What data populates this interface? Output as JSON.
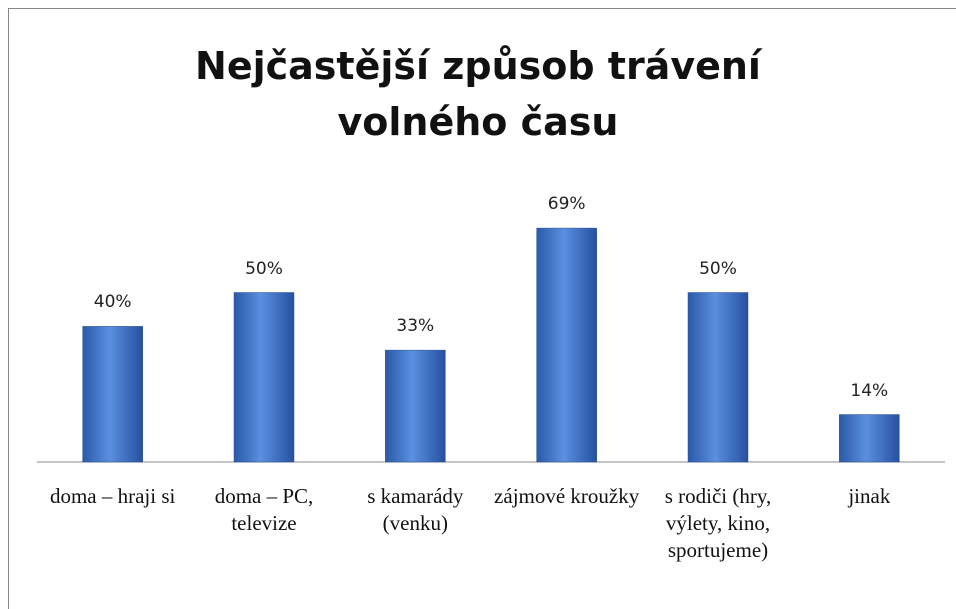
{
  "chart_data": {
    "type": "bar",
    "title": "Nejčastější způsob trávení volného času",
    "categories": [
      "doma – hraji si",
      "doma – PC, televize",
      "s kamarády (venku)",
      "zájmové kroužky",
      "s rodiči (hry, výlety, kino, sportujeme)",
      "jinak"
    ],
    "values": [
      40,
      50,
      33,
      69,
      50,
      14
    ],
    "value_labels": [
      "40%",
      "50%",
      "33%",
      "69%",
      "50%",
      "14%"
    ],
    "color": "#3a6fc4"
  }
}
